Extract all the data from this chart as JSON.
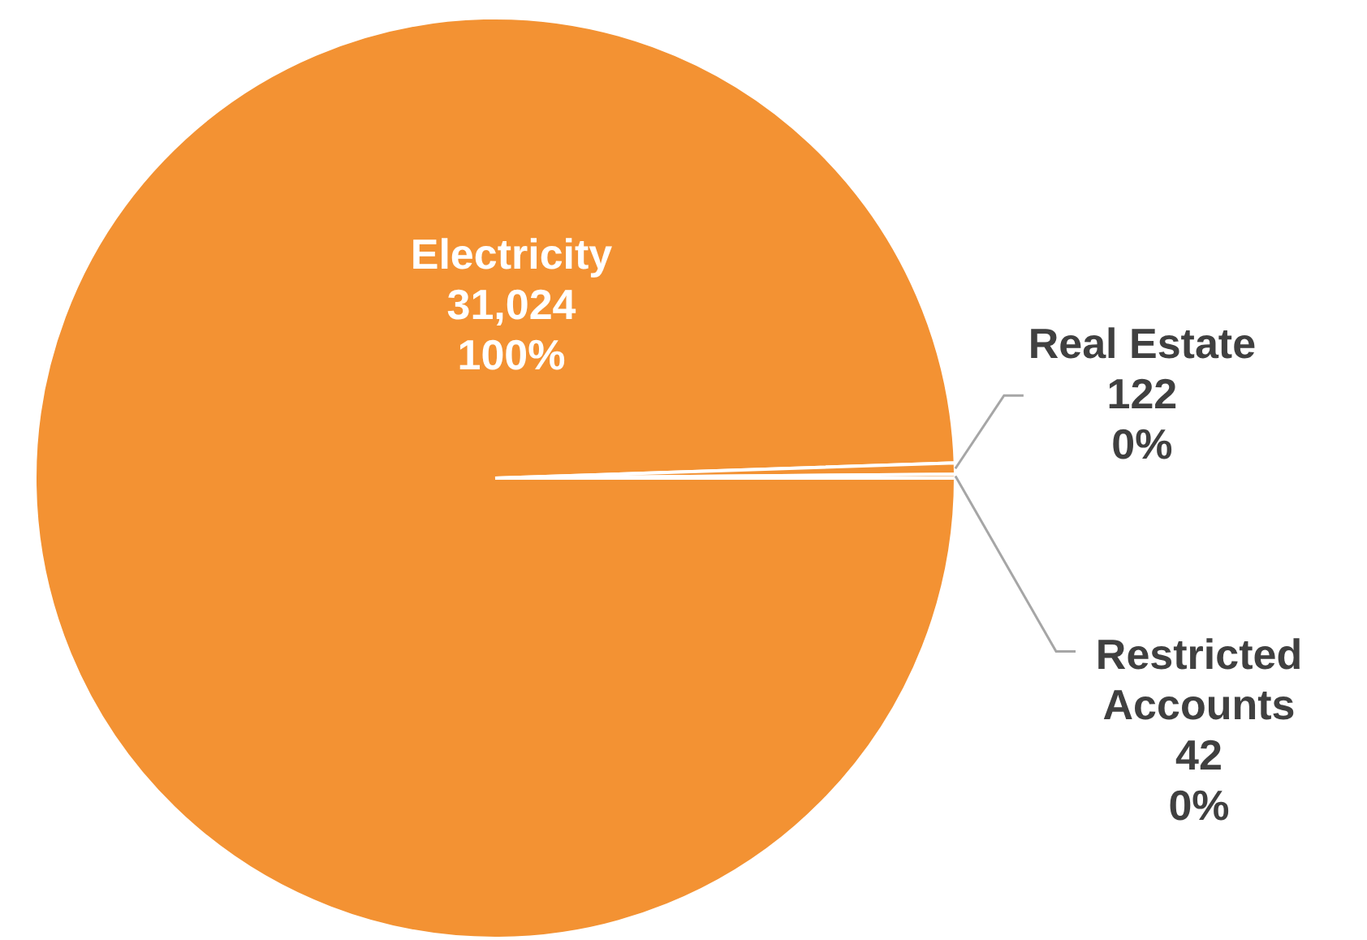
{
  "chart_data": {
    "type": "pie",
    "categories": [
      "Electricity",
      "Real Estate",
      "Restricted Accounts"
    ],
    "values": [
      31024,
      122,
      42
    ],
    "colors": [
      "#f39233",
      "#f39233",
      "#f39233"
    ],
    "value_labels": [
      "31,024\n100%",
      "122\n0%",
      "42\n0%"
    ],
    "legend": false
  }
}
